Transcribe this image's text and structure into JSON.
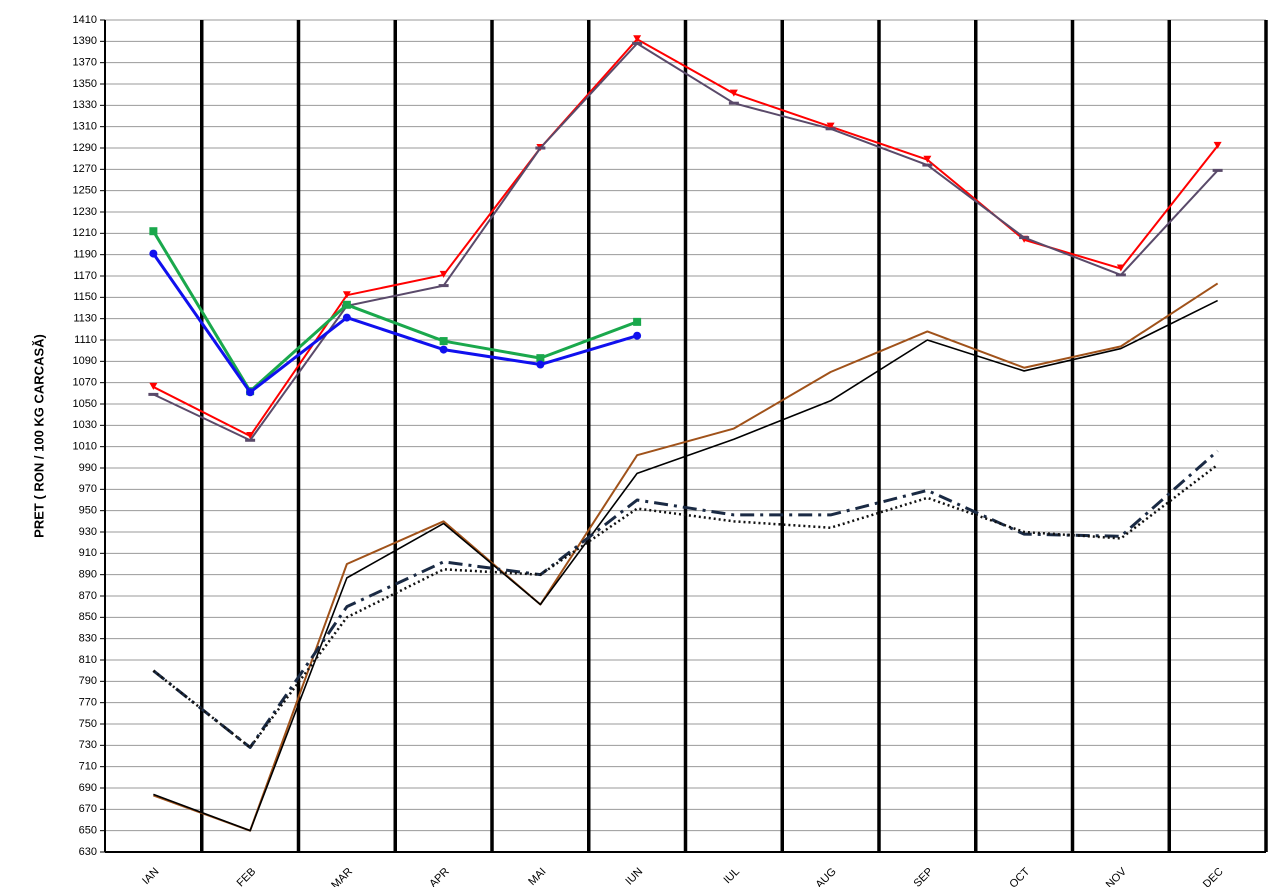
{
  "chart_data": {
    "type": "line",
    "y_label": "PRET ( RON / 100 KG CARCASĂ)",
    "categories": [
      "IAN",
      "FEB",
      "MAR",
      "APR",
      "MAI",
      "IUN",
      "IUL",
      "AUG",
      "SEP",
      "OCT",
      "NOV",
      "DEC"
    ],
    "ylim": [
      630,
      1410
    ],
    "yticks": [
      630,
      650,
      670,
      690,
      710,
      730,
      750,
      770,
      790,
      810,
      830,
      850,
      870,
      890,
      910,
      930,
      950,
      970,
      990,
      1010,
      1030,
      1050,
      1070,
      1090,
      1110,
      1130,
      1150,
      1170,
      1190,
      1210,
      1230,
      1250,
      1270,
      1290,
      1310,
      1330,
      1350,
      1370,
      1390,
      1410
    ],
    "grid": true,
    "series": [
      {
        "color": "#ff0000",
        "width": 2,
        "marker": "triangle",
        "values": [
          1066,
          1020,
          1152,
          1171,
          1290,
          1392,
          1341,
          1310,
          1279,
          1204,
          1177,
          1292
        ]
      },
      {
        "color": "#5a4a6a",
        "width": 2,
        "marker": "dash",
        "values": [
          1059,
          1016,
          1142,
          1161,
          1290,
          1388,
          1332,
          1308,
          1274,
          1206,
          1171,
          1269
        ]
      },
      {
        "color": "#1aa84c",
        "width": 3,
        "marker": "square",
        "values": [
          1212,
          1062,
          1143,
          1109,
          1093,
          1127,
          null,
          null,
          null,
          null,
          null,
          null
        ]
      },
      {
        "color": "#1010ee",
        "width": 3,
        "marker": "circle",
        "values": [
          1191,
          1061,
          1131,
          1101,
          1087,
          1114,
          null,
          null,
          null,
          null,
          null,
          null
        ]
      },
      {
        "color": "#a0521a",
        "width": 2,
        "values": [
          683,
          650,
          900,
          940,
          862,
          1002,
          1027,
          1080,
          1118,
          1084,
          1104,
          1163
        ]
      },
      {
        "color": "#000000",
        "width": 1.6,
        "values": [
          684,
          650,
          887,
          938,
          862,
          985,
          1017,
          1053,
          1110,
          1081,
          1102,
          1147
        ]
      },
      {
        "color": "#1a2a44",
        "width": 3,
        "style": "dashdot",
        "values": [
          800,
          728,
          860,
          902,
          890,
          960,
          946,
          946,
          969,
          928,
          926,
          1006
        ]
      },
      {
        "color": "#111111",
        "width": 2.5,
        "style": "dotted",
        "values": [
          800,
          728,
          850,
          895,
          890,
          952,
          940,
          934,
          962,
          930,
          924,
          993
        ]
      }
    ]
  }
}
